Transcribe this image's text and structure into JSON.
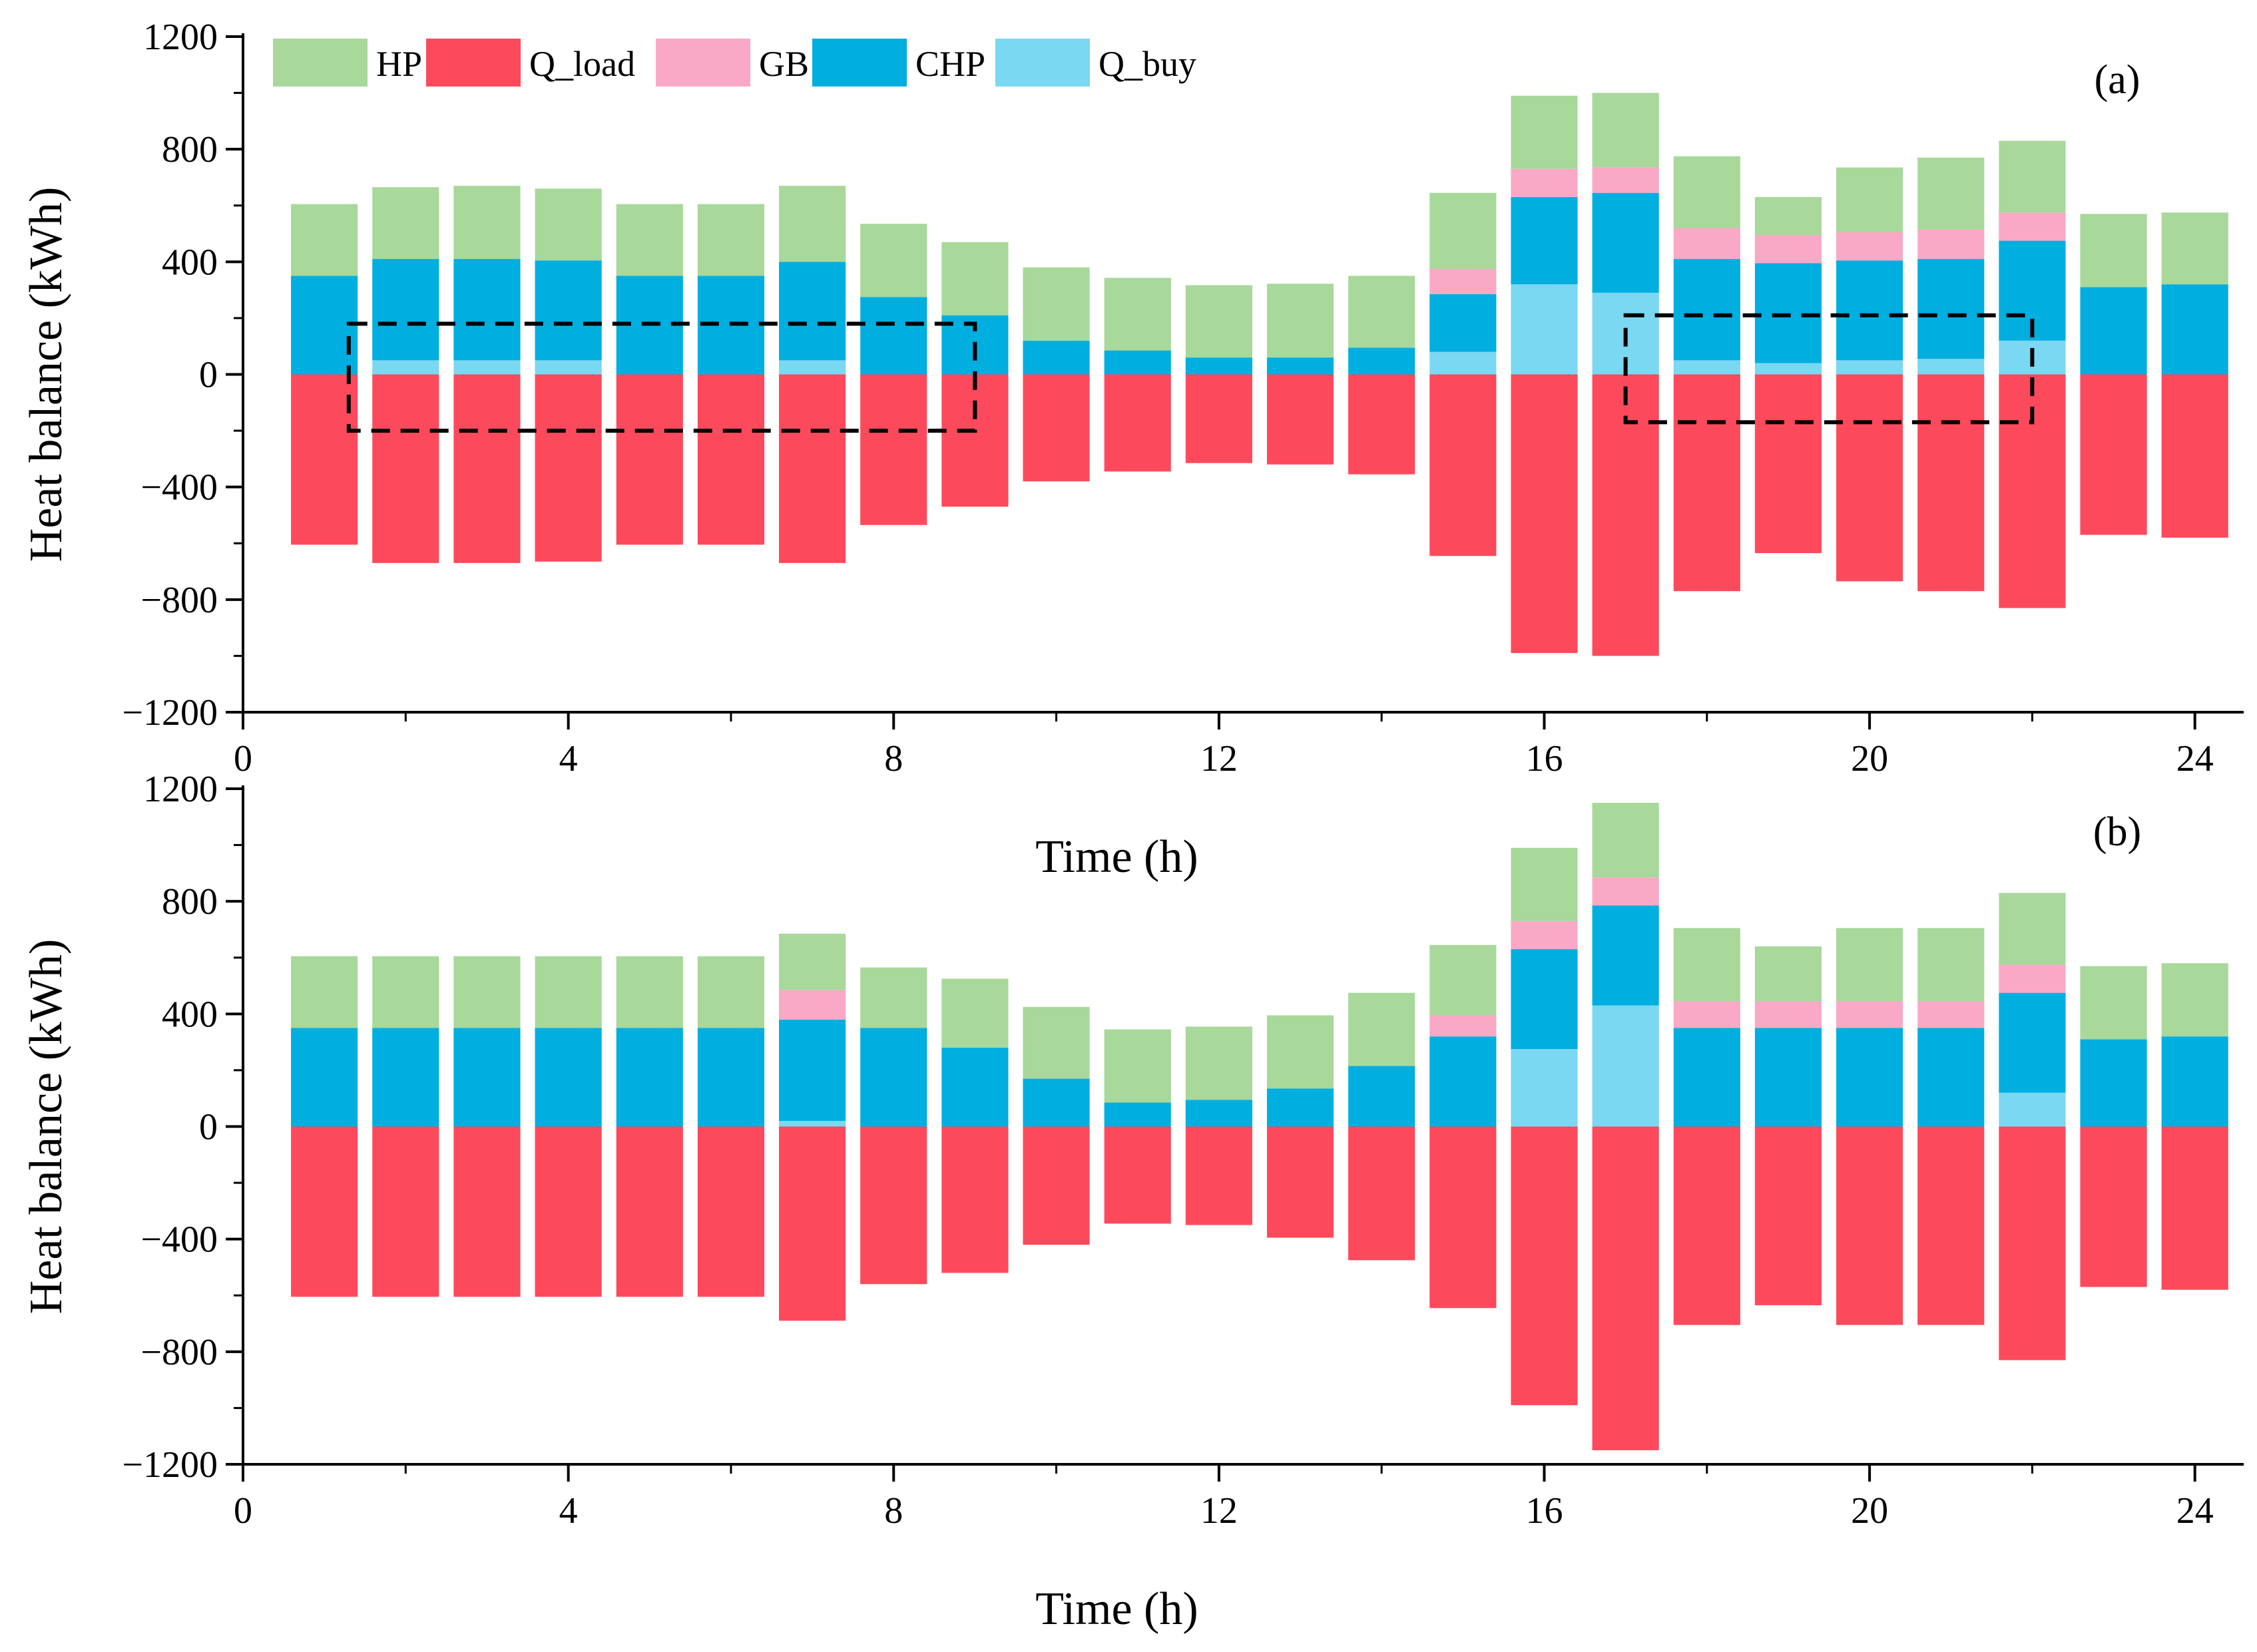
{
  "colors": {
    "HP": "#a8d89a",
    "Q_load": "#fc4a5c",
    "GB": "#f9a8c6",
    "CHP": "#00aee0",
    "Q_buy": "#7ad8f2"
  },
  "chart_data": [
    {
      "type": "bar",
      "stacked": true,
      "panel_label": "(a)",
      "xlabel": "Time (h)",
      "ylabel": "Heat balance (kWh)",
      "xlim": [
        0,
        24.6
      ],
      "ylim": [
        -1200,
        1200
      ],
      "xticks": [
        0,
        4,
        8,
        12,
        16,
        20,
        24
      ],
      "yticks": [
        -1200,
        -800,
        -400,
        0,
        400,
        800,
        1200
      ],
      "x": [
        1,
        2,
        3,
        4,
        5,
        6,
        7,
        8,
        9,
        10,
        11,
        12,
        13,
        14,
        15,
        16,
        17,
        18,
        19,
        20,
        21,
        22,
        23,
        24
      ],
      "legend": [
        "HP",
        "Q_load",
        "GB",
        "CHP",
        "Q_buy"
      ],
      "legend_position": "top-left",
      "series": [
        {
          "name": "Q_buy",
          "values": [
            0,
            50,
            50,
            50,
            0,
            0,
            50,
            0,
            0,
            0,
            0,
            0,
            0,
            0,
            80,
            320,
            290,
            50,
            40,
            50,
            55,
            120,
            0,
            0
          ]
        },
        {
          "name": "CHP",
          "values": [
            350,
            360,
            360,
            355,
            350,
            350,
            350,
            275,
            210,
            120,
            85,
            60,
            60,
            95,
            205,
            310,
            355,
            360,
            355,
            355,
            355,
            355,
            310,
            320
          ]
        },
        {
          "name": "GB",
          "values": [
            0,
            0,
            0,
            0,
            0,
            0,
            0,
            0,
            0,
            0,
            0,
            0,
            0,
            0,
            90,
            100,
            90,
            110,
            100,
            100,
            105,
            100,
            0,
            0
          ]
        },
        {
          "name": "HP",
          "values": [
            255,
            255,
            260,
            255,
            255,
            255,
            270,
            260,
            260,
            260,
            258,
            257,
            262,
            255,
            270,
            260,
            265,
            255,
            135,
            230,
            255,
            255,
            260,
            255
          ]
        },
        {
          "name": "Q_load",
          "values": [
            -605,
            -670,
            -670,
            -665,
            -605,
            -605,
            -670,
            -535,
            -470,
            -380,
            -345,
            -315,
            -320,
            -355,
            -645,
            -990,
            -1000,
            -770,
            -635,
            -735,
            -770,
            -830,
            -570,
            -580
          ]
        }
      ],
      "annotations": [
        "dashed box around hours 1.3–9.0",
        "dashed box around hours 17.0–22.0"
      ]
    },
    {
      "type": "bar",
      "stacked": true,
      "panel_label": "(b)",
      "xlabel": "Time (h)",
      "ylabel": "Heat balance (kWh)",
      "xlim": [
        0,
        24.6
      ],
      "ylim": [
        -1200,
        1200
      ],
      "xticks": [
        0,
        4,
        8,
        12,
        16,
        20,
        24
      ],
      "yticks": [
        -1200,
        -800,
        -400,
        0,
        400,
        800,
        1200
      ],
      "x": [
        1,
        2,
        3,
        4,
        5,
        6,
        7,
        8,
        9,
        10,
        11,
        12,
        13,
        14,
        15,
        16,
        17,
        18,
        19,
        20,
        21,
        22,
        23,
        24
      ],
      "series": [
        {
          "name": "Q_buy",
          "values": [
            0,
            0,
            0,
            0,
            0,
            0,
            20,
            0,
            0,
            0,
            0,
            0,
            0,
            0,
            0,
            275,
            430,
            0,
            0,
            0,
            0,
            120,
            0,
            0
          ]
        },
        {
          "name": "CHP",
          "values": [
            350,
            350,
            350,
            350,
            350,
            350,
            360,
            350,
            280,
            170,
            85,
            95,
            135,
            215,
            320,
            355,
            355,
            350,
            350,
            350,
            350,
            355,
            310,
            320
          ]
        },
        {
          "name": "GB",
          "values": [
            0,
            0,
            0,
            0,
            0,
            0,
            105,
            0,
            0,
            0,
            0,
            0,
            0,
            0,
            75,
            100,
            100,
            95,
            95,
            95,
            95,
            100,
            0,
            0
          ]
        },
        {
          "name": "HP",
          "values": [
            255,
            255,
            255,
            255,
            255,
            255,
            200,
            215,
            245,
            255,
            260,
            260,
            260,
            260,
            250,
            260,
            265,
            260,
            195,
            260,
            260,
            255,
            260,
            260
          ]
        },
        {
          "name": "Q_load",
          "values": [
            -605,
            -605,
            -605,
            -605,
            -605,
            -605,
            -690,
            -560,
            -520,
            -420,
            -345,
            -350,
            -395,
            -475,
            -645,
            -990,
            -1150,
            -705,
            -635,
            -705,
            -705,
            -830,
            -570,
            -580
          ]
        }
      ]
    }
  ]
}
